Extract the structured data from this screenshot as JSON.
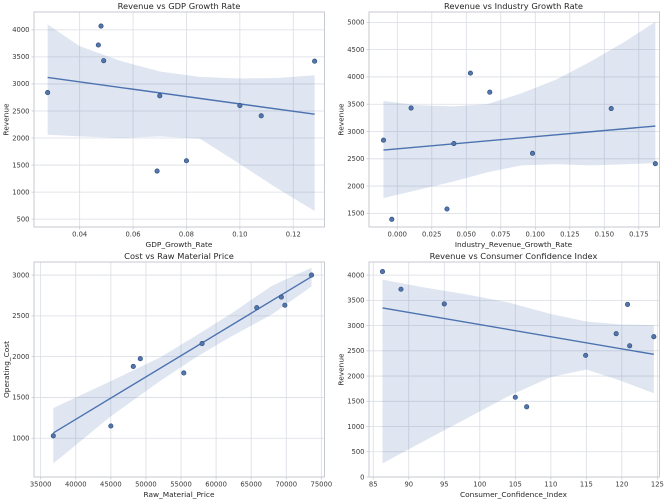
{
  "figure_background": "#ffffff",
  "style": {
    "line_color": "#4C72B0",
    "point_fill": "#5476ac",
    "point_stroke": "#31507f",
    "band_color": "rgba(76,114,176,0.18)",
    "grid_color": "#d9dde4",
    "spine_color": "#c6cad2",
    "tick_text_color": "#3a3a3a"
  },
  "chart_data": [
    {
      "type": "scatter",
      "title": "Revenue vs GDP Growth Rate",
      "xlabel": "GDP_Growth_Rate",
      "ylabel": "Revenue",
      "xlim": [
        0.0229,
        0.1317
      ],
      "ylim": [
        355,
        4330
      ],
      "xticks": [
        0.04,
        0.06,
        0.08,
        0.1,
        0.12
      ],
      "xtick_labels": [
        "0.04",
        "0.06",
        "0.08",
        "0.10",
        "0.12"
      ],
      "yticks": [
        500,
        1000,
        1500,
        2000,
        2500,
        3000,
        3500,
        4000
      ],
      "ytick_labels": [
        "500",
        "1000",
        "1500",
        "2000",
        "2500",
        "3000",
        "3500",
        "4000"
      ],
      "points": [
        [
          0.028,
          2840
        ],
        [
          0.048,
          4070
        ],
        [
          0.047,
          3720
        ],
        [
          0.049,
          3430
        ],
        [
          0.07,
          2780
        ],
        [
          0.069,
          1390
        ],
        [
          0.08,
          1580
        ],
        [
          0.1,
          2600
        ],
        [
          0.108,
          2410
        ],
        [
          0.128,
          3420
        ]
      ],
      "regression_line": [
        [
          0.028,
          3120
        ],
        [
          0.128,
          2440
        ]
      ],
      "confidence_band": {
        "x": [
          0.028,
          0.04,
          0.055,
          0.07,
          0.085,
          0.1,
          0.114,
          0.128
        ],
        "upper": [
          4100,
          3700,
          3430,
          3230,
          3130,
          3100,
          3110,
          3160
        ],
        "lower": [
          2060,
          2030,
          2000,
          2030,
          1990,
          1520,
          1070,
          650
        ]
      },
      "grid": true,
      "legend": false
    },
    {
      "type": "scatter",
      "title": "Revenue vs Industry Growth Rate",
      "xlabel": "Industry_Revenue_Growth_Rate",
      "ylabel": "Revenue",
      "xlim": [
        -0.0205,
        0.19
      ],
      "ylim": [
        1250,
        5190
      ],
      "xticks": [
        0.0,
        0.025,
        0.05,
        0.075,
        0.1,
        0.125,
        0.15,
        0.175
      ],
      "xtick_labels": [
        "0.000",
        "0.025",
        "0.050",
        "0.075",
        "0.100",
        "0.125",
        "0.150",
        "0.175"
      ],
      "yticks": [
        1500,
        2000,
        2500,
        3000,
        3500,
        4000,
        4500,
        5000
      ],
      "ytick_labels": [
        "1500",
        "2000",
        "2500",
        "3000",
        "3500",
        "4000",
        "4500",
        "5000"
      ],
      "points": [
        [
          -0.01,
          2840
        ],
        [
          -0.004,
          1390
        ],
        [
          0.01,
          3430
        ],
        [
          0.036,
          1580
        ],
        [
          0.041,
          2780
        ],
        [
          0.053,
          4070
        ],
        [
          0.067,
          3720
        ],
        [
          0.098,
          2600
        ],
        [
          0.155,
          3420
        ],
        [
          0.187,
          2410
        ]
      ],
      "regression_line": [
        [
          -0.01,
          2660
        ],
        [
          0.187,
          3100
        ]
      ],
      "confidence_band": {
        "x": [
          -0.01,
          0.015,
          0.04,
          0.065,
          0.09,
          0.115,
          0.14,
          0.165,
          0.187
        ],
        "upper": [
          3560,
          3480,
          3460,
          3500,
          3700,
          3950,
          4280,
          4650,
          5010
        ],
        "lower": [
          1780,
          1930,
          2080,
          2250,
          2380,
          2400,
          2380,
          2400,
          2420
        ]
      },
      "grid": true,
      "legend": false
    },
    {
      "type": "scatter",
      "title": "Cost vs Raw Material Price",
      "xlabel": "Raw_Material_Price",
      "ylabel": "Operating_Cost",
      "xlim": [
        34050,
        75450
      ],
      "ylim": [
        525,
        3160
      ],
      "xticks": [
        35000,
        40000,
        45000,
        50000,
        55000,
        60000,
        65000,
        70000,
        75000
      ],
      "xtick_labels": [
        "35000",
        "40000",
        "45000",
        "50000",
        "55000",
        "60000",
        "65000",
        "70000",
        "75000"
      ],
      "yticks": [
        1000,
        1500,
        2000,
        2500,
        3000
      ],
      "ytick_labels": [
        "1000",
        "1500",
        "2000",
        "2500",
        "3000"
      ],
      "points": [
        [
          36800,
          1030
        ],
        [
          45000,
          1150
        ],
        [
          48200,
          1880
        ],
        [
          49200,
          1975
        ],
        [
          55400,
          1800
        ],
        [
          58000,
          2160
        ],
        [
          65800,
          2600
        ],
        [
          69300,
          2730
        ],
        [
          69800,
          2630
        ],
        [
          73600,
          3000
        ]
      ],
      "regression_line": [
        [
          36800,
          1065
        ],
        [
          73600,
          2980
        ]
      ],
      "confidence_band": {
        "x": [
          36800,
          45000,
          52000,
          57000,
          62000,
          68000,
          73600
        ],
        "upper": [
          1370,
          1700,
          1990,
          2250,
          2520,
          2870,
          3090
        ],
        "lower": [
          690,
          1270,
          1700,
          1985,
          2240,
          2520,
          2860
        ]
      },
      "grid": true,
      "legend": false
    },
    {
      "type": "scatter",
      "title": "Revenue vs Consumer Confidence Index",
      "xlabel": "Consumer_Confidence_Index",
      "ylabel": "Revenue",
      "xlim": [
        84.4,
        125.3
      ],
      "ylim": [
        0,
        4260
      ],
      "xticks": [
        85,
        90,
        95,
        100,
        105,
        110,
        115,
        120,
        125
      ],
      "xtick_labels": [
        "85",
        "90",
        "95",
        "100",
        "105",
        "110",
        "115",
        "120",
        "125"
      ],
      "yticks": [
        0,
        500,
        1000,
        1500,
        2000,
        2500,
        3000,
        3500,
        4000
      ],
      "ytick_labels": [
        "0",
        "500",
        "1000",
        "1500",
        "2000",
        "2500",
        "3000",
        "3500",
        "4000"
      ],
      "points": [
        [
          86.3,
          4070
        ],
        [
          88.9,
          3720
        ],
        [
          95.0,
          3430
        ],
        [
          105.0,
          1580
        ],
        [
          106.6,
          1390
        ],
        [
          114.9,
          2410
        ],
        [
          119.2,
          2840
        ],
        [
          120.8,
          3420
        ],
        [
          121.1,
          2600
        ],
        [
          124.5,
          2780
        ]
      ],
      "regression_line": [
        [
          86.3,
          3350
        ],
        [
          124.5,
          2430
        ]
      ],
      "confidence_band": {
        "x": [
          86.3,
          92,
          98,
          104,
          110,
          115,
          120,
          124.5
        ],
        "upper": [
          3910,
          3760,
          3620,
          3460,
          3230,
          3080,
          3020,
          3010
        ],
        "lower": [
          270,
          700,
          1150,
          1600,
          1980,
          2130,
          1900,
          1660
        ]
      },
      "grid": true,
      "legend": false
    }
  ]
}
